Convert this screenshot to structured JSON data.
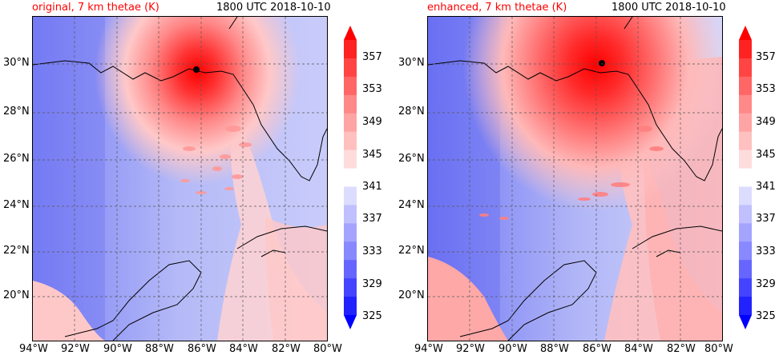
{
  "panels": [
    {
      "title_left": "original, 7 km thetae (K)",
      "title_right": "1800 UTC 2018-10-10"
    },
    {
      "title_left": "enhanced, 7 km thetae (K)",
      "title_right": "1800 UTC 2018-10-10"
    }
  ],
  "lon_labels": [
    "94°W",
    "92°W",
    "90°W",
    "88°W",
    "86°W",
    "84°W",
    "82°W",
    "80°W"
  ],
  "lat_labels": [
    "30°N",
    "28°N",
    "26°N",
    "24°N",
    "22°N",
    "20°N"
  ],
  "colorbar": {
    "labels": [
      "357",
      "353",
      "349",
      "345",
      "341",
      "337",
      "333",
      "329",
      "325"
    ],
    "colors": [
      "#0000ff",
      "#2222ff",
      "#4444ff",
      "#6666ff",
      "#8888ff",
      "#a4a4ff",
      "#c0c0ff",
      "#dcdcff",
      "#ffffff",
      "#ffdcdc",
      "#ffc0c0",
      "#ffa4a4",
      "#ff8888",
      "#ff6666",
      "#ff4444",
      "#ff2222",
      "#ff0000"
    ]
  },
  "colors": {
    "title_accent": "#ff0000",
    "storm_marker": "#000000"
  }
}
